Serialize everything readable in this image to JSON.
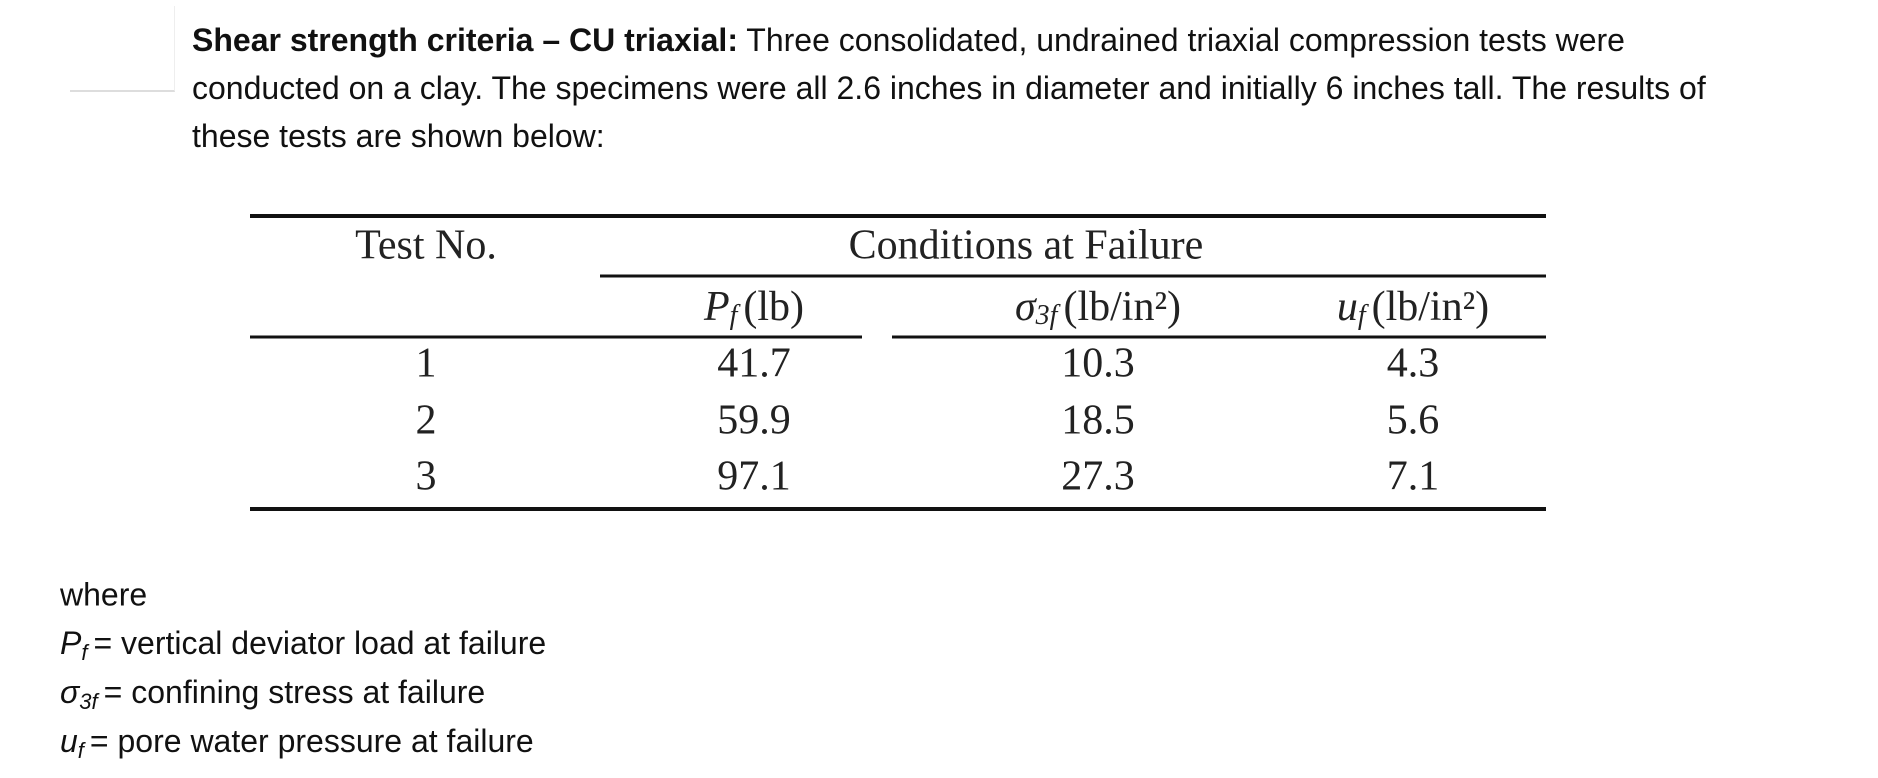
{
  "intro": {
    "heading": "Shear strength criteria – CU triaxial:",
    "text": "Three consolidated, undrained triaxial compression tests were conducted on a clay. The specimens were all 2.6 inches in diameter and initially 6 inches tall. The results of these tests are shown below:"
  },
  "table": {
    "header": {
      "test": "Test No.",
      "group": "Conditions at Failure",
      "columns": [
        {
          "symbol": "P",
          "subscript": "f",
          "unit": "(lb)"
        },
        {
          "symbol": "σ",
          "subscript": "3f",
          "unit": "(lb/in²)"
        },
        {
          "symbol": "u",
          "subscript": "f",
          "unit": "(lb/in²)"
        }
      ]
    },
    "rows": [
      [
        1,
        41.7,
        10.3,
        4.3
      ],
      [
        2,
        59.9,
        18.5,
        5.6
      ],
      [
        3,
        97.1,
        27.3,
        7.1
      ]
    ]
  },
  "legend": {
    "where": "where",
    "items": [
      {
        "symbol": "P",
        "subscript": "f",
        "definition": "= vertical deviator load at failure"
      },
      {
        "symbol": "σ",
        "subscript": "3f",
        "definition": "= confining stress at failure"
      },
      {
        "symbol": "u",
        "subscript": "f",
        "definition": "= pore water pressure at failure"
      }
    ]
  }
}
